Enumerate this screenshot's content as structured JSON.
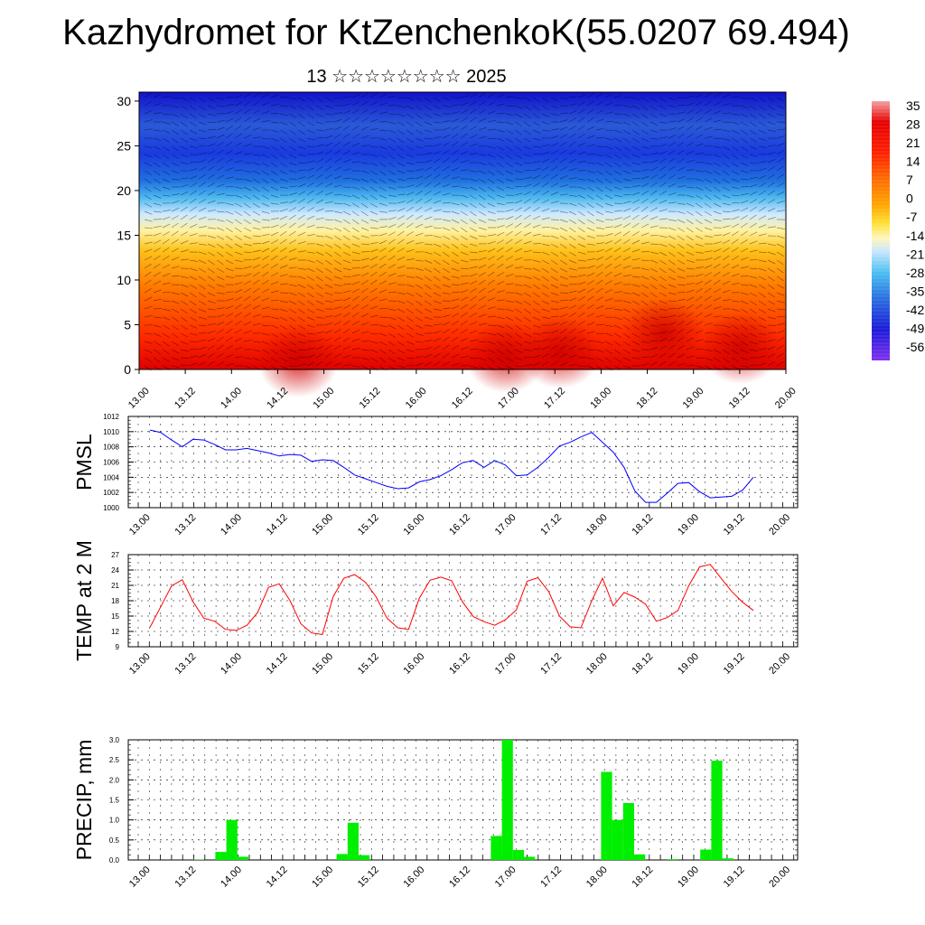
{
  "title": "Kazhydromet for KtZenchenkoK(55.0207 69.494)",
  "subtitle": "13 ☆☆☆☆☆☆☆☆ 2025",
  "time_labels": [
    "13.00",
    "13.12",
    "14.00",
    "14.12",
    "15.00",
    "15.12",
    "16.00",
    "16.12",
    "17.00",
    "17.12",
    "18.00",
    "18.12",
    "19.00",
    "19.12",
    "20.00"
  ],
  "chart_data": [
    {
      "type": "heatmap",
      "name": "cross-section",
      "x_ticks": [
        "13.00",
        "13.12",
        "14.00",
        "14.12",
        "15.00",
        "15.12",
        "16.00",
        "16.12",
        "17.00",
        "17.12",
        "18.00",
        "18.12",
        "19.00",
        "19.12",
        "20.00"
      ],
      "y_ticks": [
        "0",
        "5",
        "10",
        "15",
        "20",
        "25",
        "30"
      ],
      "ylim": [
        0,
        31
      ],
      "colorbar": {
        "labels": [
          "35",
          "28",
          "21",
          "14",
          "7",
          "0",
          "-7",
          "-14",
          "-21",
          "-28",
          "-35",
          "-42",
          "-49",
          "-56"
        ],
        "colors": [
          "#f4a0a0",
          "#e60000",
          "#ff1a00",
          "#ff4a00",
          "#ff7a00",
          "#ffa500",
          "#ffe033",
          "#fff2b0",
          "#c8e6ff",
          "#4cc0f0",
          "#3288e0",
          "#2050d0",
          "#1a1ad8",
          "#8030f0"
        ]
      }
    },
    {
      "type": "line",
      "name": "pmsl",
      "ylabel": "PMSL",
      "ylim": [
        1000,
        1012
      ],
      "y_ticks": [
        "1012",
        "1010",
        "1008",
        "1006",
        "1004",
        "1002",
        "1000"
      ],
      "x_ticks": [
        "13.00",
        "13.12",
        "14.00",
        "14.12",
        "15.00",
        "15.12",
        "16.00",
        "16.12",
        "17.00",
        "17.12",
        "18.00",
        "18.12",
        "19.00",
        "19.12",
        "20.00"
      ],
      "color": "#0000ff",
      "values": [
        1010.2,
        1009.9,
        1008.9,
        1008.0,
        1009.0,
        1008.9,
        1008.3,
        1007.6,
        1007.6,
        1007.8,
        1007.5,
        1007.2,
        1006.8,
        1007.0,
        1006.9,
        1006.1,
        1006.3,
        1006.2,
        1005.3,
        1004.3,
        1003.8,
        1003.3,
        1002.8,
        1002.5,
        1002.6,
        1003.4,
        1003.7,
        1004.2,
        1005.0,
        1005.9,
        1006.2,
        1005.3,
        1006.2,
        1005.6,
        1004.2,
        1004.3,
        1005.3,
        1006.6,
        1008.1,
        1008.6,
        1009.3,
        1009.9,
        1008.6,
        1007.3,
        1005.3,
        1002.2,
        1000.7,
        1000.7,
        1001.9,
        1003.2,
        1003.3,
        1002.1,
        1001.3,
        1001.4,
        1001.5,
        1002.3,
        1004.0
      ]
    },
    {
      "type": "line",
      "name": "temp-2m",
      "ylabel": "TEMP at 2 M",
      "ylim": [
        9,
        27
      ],
      "y_ticks": [
        "27",
        "24",
        "21",
        "18",
        "15",
        "12",
        "9"
      ],
      "x_ticks": [
        "13.00",
        "13.12",
        "14.00",
        "14.12",
        "15.00",
        "15.12",
        "16.00",
        "16.12",
        "17.00",
        "17.12",
        "18.00",
        "18.12",
        "19.00",
        "19.12",
        "20.00"
      ],
      "color": "#ff0000",
      "values": [
        12.8,
        16.8,
        20.9,
        22.1,
        17.8,
        14.6,
        14.0,
        12.4,
        12.2,
        13.2,
        15.7,
        20.6,
        21.3,
        18.0,
        13.5,
        11.7,
        11.4,
        18.8,
        22.4,
        23.1,
        21.6,
        18.7,
        14.6,
        12.7,
        12.4,
        18.5,
        22.0,
        22.6,
        21.9,
        17.8,
        14.9,
        13.9,
        13.2,
        14.3,
        16.2,
        21.8,
        22.5,
        19.8,
        15.0,
        12.9,
        12.7,
        18.0,
        22.4,
        17.0,
        19.6,
        18.7,
        17.3,
        14.0,
        14.7,
        16.1,
        20.9,
        24.6,
        25.1,
        22.4,
        19.8,
        17.7,
        16.1
      ]
    },
    {
      "type": "bar",
      "name": "precip",
      "ylabel": "PRECIP, mm",
      "ylim": [
        0,
        3.0
      ],
      "y_ticks": [
        "3.0",
        "2.5",
        "2.0",
        "1.5",
        "1.0",
        "0.5",
        "0.0"
      ],
      "x_ticks": [
        "13.00",
        "13.12",
        "14.00",
        "14.12",
        "15.00",
        "15.12",
        "16.00",
        "16.12",
        "17.00",
        "17.12",
        "18.00",
        "18.12",
        "19.00",
        "19.12",
        "20.00"
      ],
      "color": "#00ee00",
      "values": [
        0,
        0,
        0,
        0,
        0,
        0.01,
        0,
        0.2,
        1.0,
        0.08,
        0,
        0,
        0,
        0,
        0,
        0,
        0,
        0,
        0.15,
        0.93,
        0.12,
        0,
        0,
        0,
        0,
        0,
        0,
        0,
        0,
        0,
        0,
        0,
        0.6,
        3.0,
        0.25,
        0.08,
        0,
        0,
        0,
        0,
        0,
        0,
        2.2,
        1.0,
        1.42,
        0.14,
        0,
        0,
        0.02,
        0,
        0,
        0.26,
        2.48,
        0.04,
        0,
        0,
        0
      ]
    }
  ]
}
